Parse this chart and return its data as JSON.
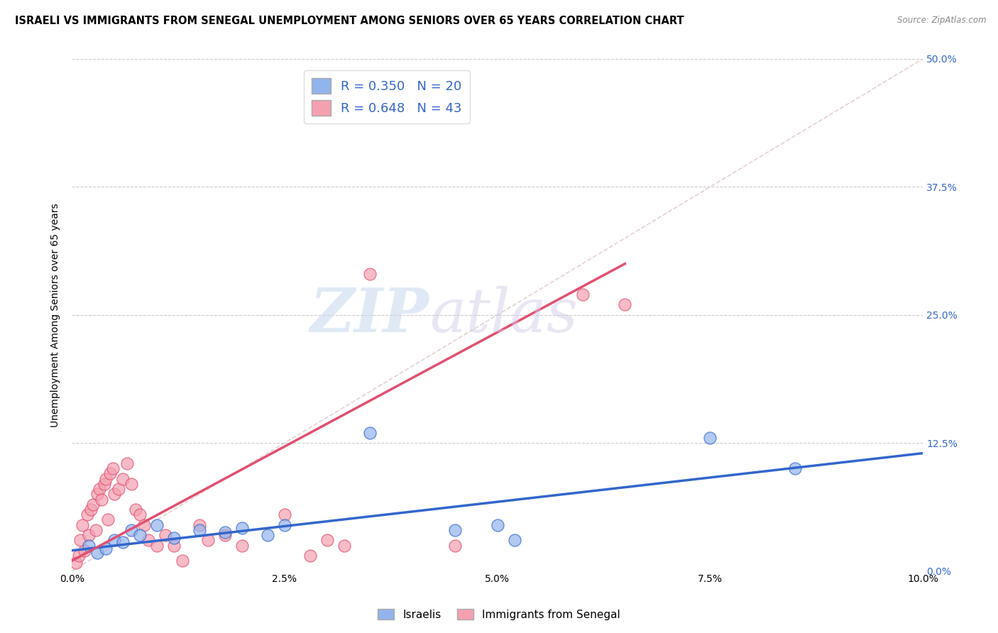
{
  "title": "ISRAELI VS IMMIGRANTS FROM SENEGAL UNEMPLOYMENT AMONG SENIORS OVER 65 YEARS CORRELATION CHART",
  "source": "Source: ZipAtlas.com",
  "ylabel": "Unemployment Among Seniors over 65 years",
  "xlabel_vals": [
    0.0,
    2.5,
    5.0,
    7.5,
    10.0
  ],
  "ylabel_vals": [
    0.0,
    12.5,
    25.0,
    37.5,
    50.0
  ],
  "xmin": 0.0,
  "xmax": 10.0,
  "ymin": 0.0,
  "ymax": 50.0,
  "legend_label_blue": "Israelis",
  "legend_label_pink": "Immigrants from Senegal",
  "R_blue": 0.35,
  "N_blue": 20,
  "R_pink": 0.648,
  "N_pink": 43,
  "blue_color": "#92B4EC",
  "pink_color": "#F4A0B0",
  "blue_line_color": "#3366CC",
  "pink_line_color": "#E05070",
  "blue_scatter": [
    [
      0.2,
      2.5
    ],
    [
      0.3,
      1.8
    ],
    [
      0.4,
      2.2
    ],
    [
      0.5,
      3.0
    ],
    [
      0.6,
      2.8
    ],
    [
      0.7,
      4.0
    ],
    [
      0.8,
      3.5
    ],
    [
      1.0,
      4.5
    ],
    [
      1.2,
      3.2
    ],
    [
      1.5,
      4.0
    ],
    [
      1.8,
      3.8
    ],
    [
      2.0,
      4.2
    ],
    [
      2.3,
      3.5
    ],
    [
      2.5,
      4.5
    ],
    [
      3.5,
      13.5
    ],
    [
      4.5,
      4.0
    ],
    [
      5.0,
      4.5
    ],
    [
      5.2,
      3.0
    ],
    [
      7.5,
      13.0
    ],
    [
      8.5,
      10.0
    ]
  ],
  "pink_scatter": [
    [
      0.05,
      0.8
    ],
    [
      0.08,
      1.5
    ],
    [
      0.1,
      3.0
    ],
    [
      0.12,
      4.5
    ],
    [
      0.15,
      2.0
    ],
    [
      0.18,
      5.5
    ],
    [
      0.2,
      3.5
    ],
    [
      0.22,
      6.0
    ],
    [
      0.25,
      6.5
    ],
    [
      0.28,
      4.0
    ],
    [
      0.3,
      7.5
    ],
    [
      0.32,
      8.0
    ],
    [
      0.35,
      7.0
    ],
    [
      0.38,
      8.5
    ],
    [
      0.4,
      9.0
    ],
    [
      0.42,
      5.0
    ],
    [
      0.45,
      9.5
    ],
    [
      0.48,
      10.0
    ],
    [
      0.5,
      7.5
    ],
    [
      0.55,
      8.0
    ],
    [
      0.6,
      9.0
    ],
    [
      0.65,
      10.5
    ],
    [
      0.7,
      8.5
    ],
    [
      0.75,
      6.0
    ],
    [
      0.8,
      5.5
    ],
    [
      0.85,
      4.5
    ],
    [
      0.9,
      3.0
    ],
    [
      1.0,
      2.5
    ],
    [
      1.1,
      3.5
    ],
    [
      1.2,
      2.5
    ],
    [
      1.3,
      1.0
    ],
    [
      1.5,
      4.5
    ],
    [
      1.6,
      3.0
    ],
    [
      1.8,
      3.5
    ],
    [
      2.0,
      2.5
    ],
    [
      2.5,
      5.5
    ],
    [
      2.8,
      1.5
    ],
    [
      3.0,
      3.0
    ],
    [
      3.2,
      2.5
    ],
    [
      3.5,
      29.0
    ],
    [
      4.5,
      2.5
    ],
    [
      6.0,
      27.0
    ],
    [
      6.5,
      26.0
    ]
  ],
  "blue_line": [
    [
      0.0,
      2.0
    ],
    [
      10.0,
      11.5
    ]
  ],
  "pink_line": [
    [
      0.0,
      1.0
    ],
    [
      6.5,
      30.0
    ]
  ],
  "diag_line": [
    [
      0.0,
      0.0
    ],
    [
      10.0,
      50.0
    ]
  ],
  "watermark_zip": "ZIP",
  "watermark_atlas": "atlas",
  "background_color": "#FFFFFF",
  "grid_color": "#CCCCCC"
}
